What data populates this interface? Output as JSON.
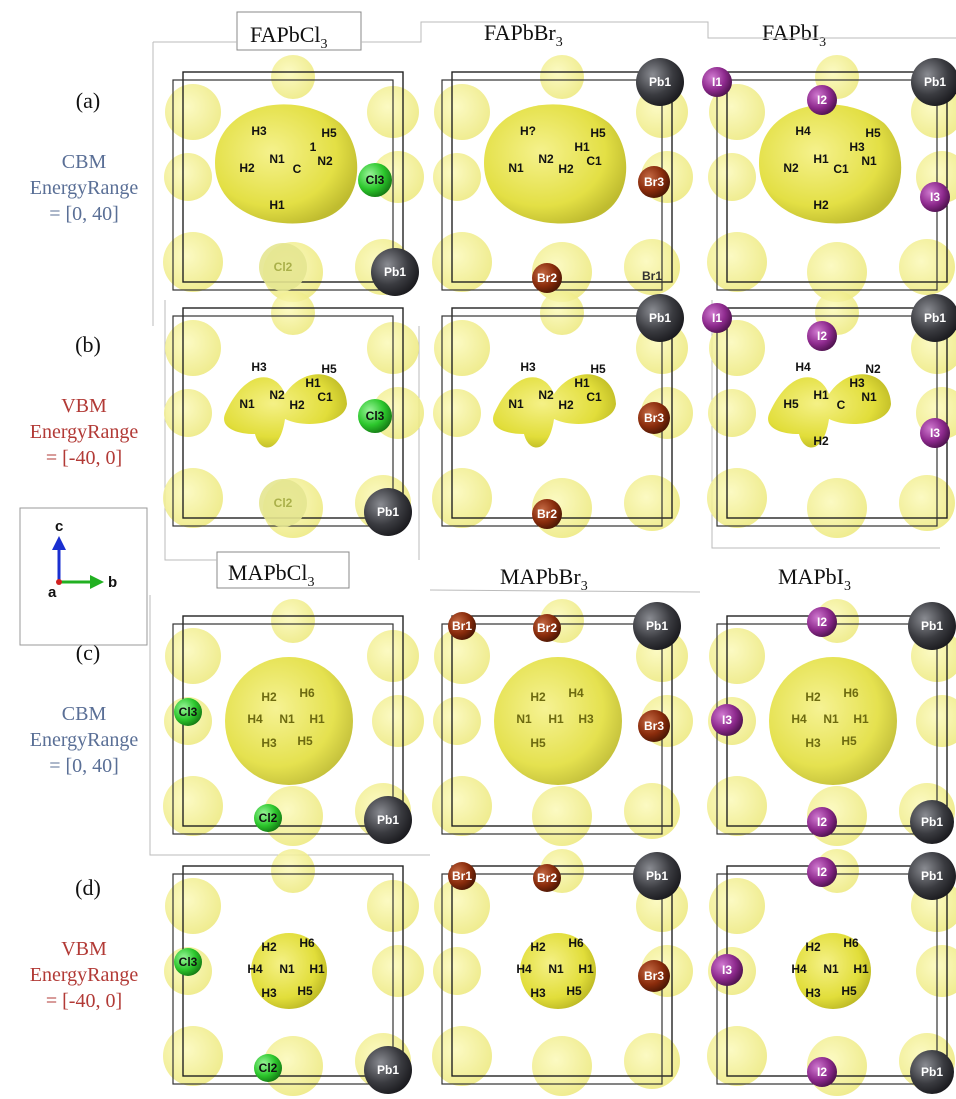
{
  "colors": {
    "cbm_label": "#5a6f96",
    "vbm_label": "#b23a36",
    "isosurface": "#e6e22a",
    "Pb": "#3a3b40",
    "Cl": "#2cc72c",
    "Br": "#8a2c0c",
    "I": "#8e2a8e",
    "axis_c": "#1a2fd0",
    "axis_b": "#22b022",
    "axis_a": "#d02020"
  },
  "column_titles": {
    "top": [
      {
        "base": "FAPbCl",
        "sub": "3"
      },
      {
        "base": "FAPbBr",
        "sub": "3"
      },
      {
        "base": "FAPbI",
        "sub": "3"
      }
    ],
    "bottom": [
      {
        "base": "MAPbCl",
        "sub": "3"
      },
      {
        "base": "MAPbBr",
        "sub": "3"
      },
      {
        "base": "MAPbI",
        "sub": "3"
      }
    ]
  },
  "rows": [
    {
      "tag": "(a)",
      "band": "CBM",
      "line2": "EnergyRange",
      "line3": "= [0, 40]",
      "kind": "cbm"
    },
    {
      "tag": "(b)",
      "band": "VBM",
      "line2": "EnergyRange",
      "line3": "= [-40, 0]",
      "kind": "vbm"
    },
    {
      "tag": "(c)",
      "band": "CBM",
      "line2": "EnergyRange",
      "line3": "= [0, 40]",
      "kind": "cbm"
    },
    {
      "tag": "(d)",
      "band": "VBM",
      "line2": "EnergyRange",
      "line3": "= [-40, 0]",
      "kind": "vbm"
    }
  ],
  "axes_legend": {
    "c": "c",
    "a": "a",
    "b": "b"
  },
  "panels": [
    {
      "row": 0,
      "col": 0,
      "halogen": "Cl",
      "labels": {
        "pb": "Pb1",
        "x3": "Cl3",
        "x2": "Cl2",
        "h": [
          "H3",
          "H5",
          "H2",
          "N1",
          "C",
          "N2",
          "1",
          "H1"
        ]
      }
    },
    {
      "row": 0,
      "col": 1,
      "halogen": "Br",
      "labels": {
        "pb": "Pb1",
        "x3": "Br3",
        "x2": "Br2",
        "x1": "Br1",
        "h": [
          "H?",
          "H5",
          "N1",
          "N2",
          "H2",
          "C1",
          "H1"
        ]
      }
    },
    {
      "row": 0,
      "col": 2,
      "halogen": "I",
      "labels": {
        "pb": "Pb1",
        "x1": "I1",
        "x2": "I2",
        "x3": "I3",
        "h": [
          "H4",
          "H5",
          "N2",
          "H1",
          "C1",
          "N1",
          "H3",
          "H2"
        ]
      }
    },
    {
      "row": 1,
      "col": 0,
      "halogen": "Cl",
      "labels": {
        "pb": "Pb1",
        "x3": "Cl3",
        "x2": "Cl2",
        "h": [
          "H3",
          "H5",
          "N1",
          "N2",
          "H2",
          "C1",
          "H1"
        ]
      }
    },
    {
      "row": 1,
      "col": 1,
      "halogen": "Br",
      "labels": {
        "pb": "Pb1",
        "x3": "Br3",
        "x2": "Br2",
        "h": [
          "H3",
          "H5",
          "N1",
          "N2",
          "H2",
          "C1",
          "H1"
        ]
      }
    },
    {
      "row": 1,
      "col": 2,
      "halogen": "I",
      "labels": {
        "pb": "Pb1",
        "x1": "I1",
        "x2": "I2",
        "x3": "I3",
        "h": [
          "H4",
          "N2",
          "H5",
          "H1",
          "C",
          "N1",
          "H3",
          "H2"
        ]
      }
    },
    {
      "row": 2,
      "col": 0,
      "halogen": "Cl",
      "labels": {
        "pb": "Pb1",
        "x3": "Cl3",
        "x2": "Cl2",
        "h": [
          "H2",
          "H6",
          "H4",
          "N1",
          "H1",
          "H3",
          "H5"
        ]
      }
    },
    {
      "row": 2,
      "col": 1,
      "halogen": "Br",
      "labels": {
        "pb": "Pb1",
        "x3": "Br3",
        "x2": "Br2",
        "x1": "Br1",
        "h": [
          "H2",
          "H4",
          "N1",
          "H1",
          "H3",
          "H5"
        ]
      }
    },
    {
      "row": 2,
      "col": 2,
      "halogen": "I",
      "labels": {
        "pb": "Pb1",
        "x2": "I2",
        "x3": "I3",
        "x2b": "I2",
        "h": [
          "H2",
          "H6",
          "H4",
          "N1",
          "H1",
          "H3",
          "H5"
        ]
      }
    },
    {
      "row": 3,
      "col": 0,
      "halogen": "Cl",
      "labels": {
        "pb": "Pb1",
        "x3": "Cl3",
        "x2": "Cl2",
        "h": [
          "H2",
          "H6",
          "H4",
          "N1",
          "H1",
          "H3",
          "H5"
        ]
      }
    },
    {
      "row": 3,
      "col": 1,
      "halogen": "Br",
      "labels": {
        "pb": "Pb1",
        "x3": "Br3",
        "x2": "Br2",
        "x1": "Br1",
        "h": [
          "H2",
          "H6",
          "H4",
          "N1",
          "H1",
          "H3",
          "H5"
        ]
      }
    },
    {
      "row": 3,
      "col": 2,
      "halogen": "I",
      "labels": {
        "pb": "Pb1",
        "x2": "I2",
        "x3": "I3",
        "x2b": "I2",
        "h": [
          "H2",
          "H6",
          "H4",
          "N1",
          "H1",
          "H3",
          "H5"
        ]
      }
    }
  ]
}
